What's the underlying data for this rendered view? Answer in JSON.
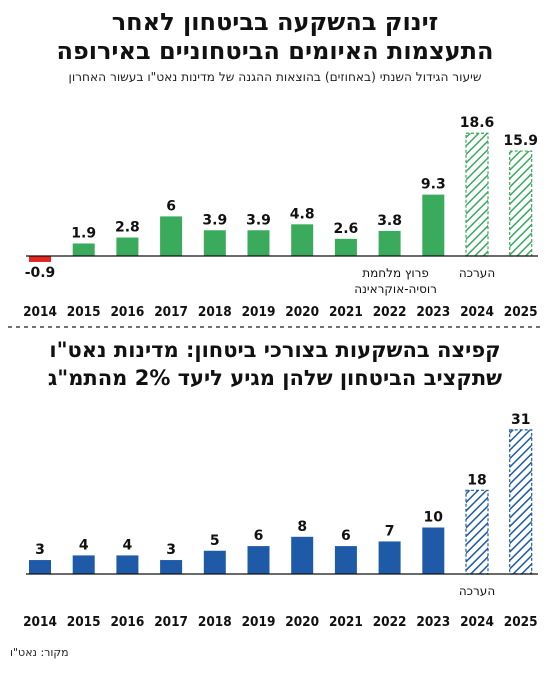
{
  "charts": [
    {
      "title_line1": "זינוק בהשקעה בביטחון לאחר",
      "title_line2": "התעצמות האיומים הביטחוניים באירופה",
      "subtitle": "שיעור הגידול השנתי (באחוזים) בהוצאות ההגנה של מדינות נאט\"ו בעשור האחרון"
    },
    {
      "title_line1": "קפיצה בהשקעות בצורכי ביטחון: מדינות נאט\"ו",
      "title_line2": "שתקציב הביטחון שלהן מגיע ליעד 2% מהתמ\"ג"
    }
  ],
  "source": "מקור: נאט\"ו",
  "colors": {
    "green": "#3aaa5c",
    "red": "#e52420",
    "blue": "#1e5aa8"
  },
  "chart_data": [
    {
      "type": "bar",
      "categories": [
        "2014",
        "2015",
        "2016",
        "2017",
        "2018",
        "2019",
        "2020",
        "2021",
        "2022",
        "2023",
        "2024",
        "2025"
      ],
      "values": [
        -0.9,
        1.9,
        2.8,
        6,
        3.9,
        3.9,
        4.8,
        2.6,
        3.8,
        9.3,
        18.6,
        15.9
      ],
      "value_labels": [
        "-0.9",
        "1.9",
        "2.8",
        "6",
        "3.9",
        "3.9",
        "4.8",
        "2.6",
        "3.8",
        "9.3",
        "18.6",
        "15.9"
      ],
      "estimated": [
        false,
        false,
        false,
        false,
        false,
        false,
        false,
        false,
        false,
        false,
        true,
        true
      ],
      "estimate_label": "הערכה",
      "annotations": [
        {
          "category": "2022",
          "lines": [
            "פרוץ מלחמת",
            "רוסיה-אוקראינה"
          ]
        }
      ],
      "grid": false
    },
    {
      "type": "bar",
      "categories": [
        "2014",
        "2015",
        "2016",
        "2017",
        "2018",
        "2019",
        "2020",
        "2021",
        "2022",
        "2023",
        "2024",
        "2025"
      ],
      "values": [
        3,
        4,
        4,
        3,
        5,
        6,
        8,
        6,
        7,
        10,
        18,
        31
      ],
      "value_labels": [
        "3",
        "4",
        "4",
        "3",
        "5",
        "6",
        "8",
        "6",
        "7",
        "10",
        "18",
        "31"
      ],
      "estimated": [
        false,
        false,
        false,
        false,
        false,
        false,
        false,
        false,
        false,
        false,
        true,
        true
      ],
      "estimate_label": "הערכה",
      "grid": false
    }
  ]
}
